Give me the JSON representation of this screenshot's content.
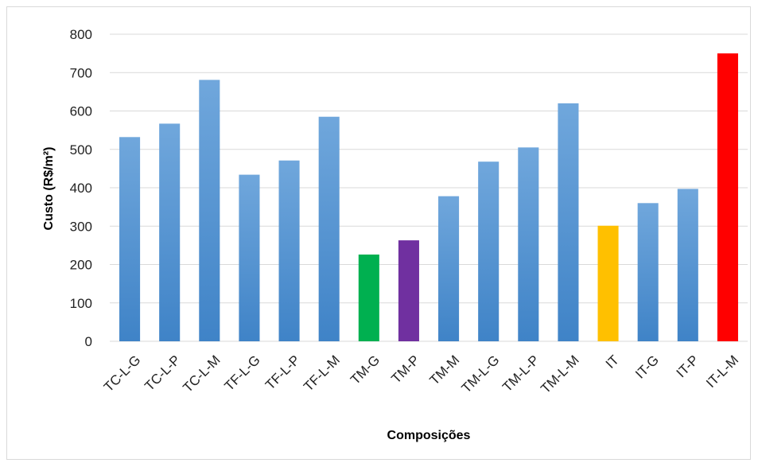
{
  "chart_data": {
    "type": "bar",
    "title": "",
    "xlabel": "Composições",
    "ylabel": "Custo (R$/m²)",
    "ylim": [
      0,
      800
    ],
    "yticks": [
      0,
      100,
      200,
      300,
      400,
      500,
      600,
      700,
      800
    ],
    "grid": true,
    "legend": "none",
    "categories": [
      "TC-L-G",
      "TC-L-P",
      "TC-L-M",
      "TF-L-G",
      "TF-L-P",
      "TF-L-M",
      "TM-G",
      "TM-P",
      "TM-M",
      "TM-L-G",
      "TM-L-P",
      "TM-L-M",
      "IT",
      "IT-G",
      "IT-P",
      "IT-L-M"
    ],
    "values": [
      532,
      567,
      681,
      434,
      471,
      585,
      226,
      263,
      378,
      468,
      505,
      620,
      301,
      360,
      397,
      750
    ],
    "colors": [
      "#5b9bd5",
      "#5b9bd5",
      "#5b9bd5",
      "#5b9bd5",
      "#5b9bd5",
      "#5b9bd5",
      "#00b050",
      "#7030a0",
      "#5b9bd5",
      "#5b9bd5",
      "#5b9bd5",
      "#5b9bd5",
      "#ffc000",
      "#5b9bd5",
      "#5b9bd5",
      "#ff0000"
    ]
  }
}
